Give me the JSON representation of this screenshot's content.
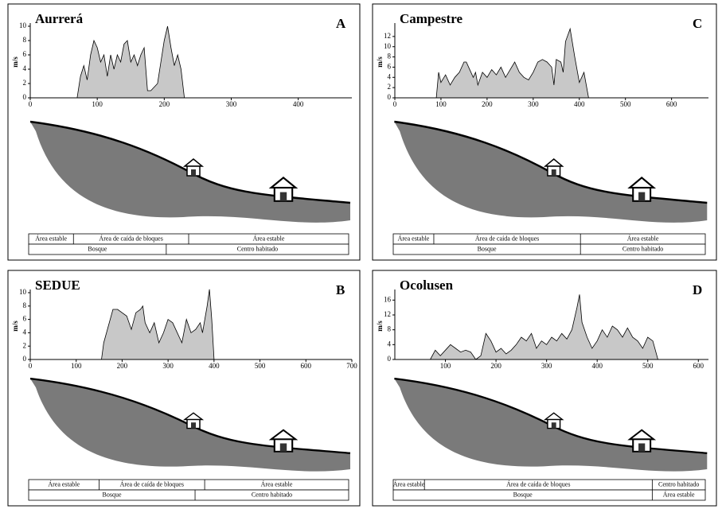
{
  "chart_data": [
    {
      "type": "area",
      "title": "Aurrerá",
      "annotation": "A",
      "ylabel": "m/s",
      "color": "#c8c8c8",
      "x": [
        70,
        75,
        80,
        85,
        90,
        95,
        100,
        105,
        110,
        115,
        120,
        125,
        130,
        135,
        140,
        145,
        150,
        155,
        160,
        165,
        170,
        175,
        180,
        185,
        190,
        195,
        200,
        205,
        210,
        215,
        220,
        225,
        230
      ],
      "values": [
        0,
        3,
        4.5,
        2.5,
        6,
        8,
        7,
        5,
        6,
        3,
        6,
        4,
        6,
        5,
        7.5,
        8,
        5,
        6,
        4.5,
        6,
        7,
        1,
        1,
        1.5,
        2,
        5,
        8,
        10,
        7,
        4.5,
        6,
        4,
        0
      ],
      "xlim": [
        0,
        480
      ],
      "xticks": [
        0,
        100,
        200,
        300,
        400
      ],
      "ylim": [
        0,
        10
      ],
      "yticks": [
        0,
        2,
        4,
        6,
        8,
        10
      ]
    },
    {
      "type": "area",
      "title": "Campestre",
      "annotation": "C",
      "ylabel": "m/s",
      "color": "#c8c8c8",
      "x": [
        90,
        95,
        100,
        110,
        120,
        130,
        140,
        150,
        155,
        160,
        170,
        175,
        180,
        190,
        200,
        210,
        220,
        230,
        240,
        250,
        260,
        270,
        280,
        290,
        300,
        310,
        320,
        330,
        340,
        345,
        350,
        360,
        365,
        370,
        380,
        390,
        400,
        410,
        420
      ],
      "values": [
        0,
        5,
        3,
        4.5,
        2.5,
        4,
        5,
        7,
        7,
        6,
        4,
        5,
        2.5,
        5,
        4,
        5.5,
        4.5,
        6,
        4,
        5.5,
        7,
        5,
        4,
        3.5,
        5,
        7,
        7.5,
        7,
        6,
        2.5,
        7.5,
        7,
        5,
        11,
        13.5,
        8,
        3,
        5,
        0
      ],
      "xlim": [
        0,
        680
      ],
      "xticks": [
        0,
        100,
        200,
        300,
        400,
        500,
        600
      ],
      "ylim": [
        0,
        14
      ],
      "yticks": [
        0,
        2,
        4,
        6,
        8,
        10,
        12
      ]
    },
    {
      "type": "area",
      "title": "SEDUE",
      "annotation": "B",
      "ylabel": "m/s",
      "color": "#c8c8c8",
      "x": [
        155,
        160,
        170,
        180,
        190,
        200,
        210,
        220,
        230,
        240,
        245,
        250,
        260,
        270,
        280,
        290,
        300,
        310,
        320,
        330,
        340,
        350,
        360,
        370,
        375,
        380,
        385,
        390,
        395,
        400
      ],
      "values": [
        0,
        2.5,
        5,
        7.5,
        7.5,
        7,
        6.5,
        4.5,
        7,
        7.5,
        8,
        5.5,
        4,
        5.5,
        2.5,
        4,
        6,
        5.5,
        4,
        2.5,
        6,
        4,
        4.5,
        5.5,
        4,
        6,
        8,
        10.5,
        6,
        0
      ],
      "xlim": [
        0,
        700
      ],
      "xticks": [
        0,
        100,
        200,
        300,
        400,
        500,
        600,
        700
      ],
      "ylim": [
        0,
        10
      ],
      "yticks": [
        0,
        2,
        4,
        6,
        8,
        10
      ]
    },
    {
      "type": "area",
      "title": "Ocolusen",
      "annotation": "D",
      "ylabel": "m/s",
      "color": "#c8c8c8",
      "x": [
        70,
        80,
        90,
        100,
        110,
        120,
        130,
        140,
        150,
        160,
        170,
        180,
        190,
        200,
        210,
        220,
        230,
        240,
        250,
        260,
        270,
        280,
        290,
        300,
        310,
        320,
        330,
        340,
        350,
        360,
        365,
        370,
        380,
        390,
        400,
        410,
        420,
        430,
        440,
        450,
        460,
        470,
        480,
        490,
        500,
        510,
        520
      ],
      "values": [
        0,
        2.5,
        1,
        2.5,
        4,
        3,
        2,
        2.5,
        2,
        0,
        1,
        7,
        5,
        2,
        3,
        1.5,
        2.5,
        4,
        6,
        5,
        7,
        3,
        5,
        4,
        6,
        5,
        7,
        5.5,
        8,
        14,
        17.5,
        10,
        6,
        3,
        5,
        8,
        6,
        9,
        8,
        6,
        8.5,
        6,
        5,
        3,
        6,
        5,
        0
      ],
      "xlim": [
        0,
        620
      ],
      "xticks": [
        100,
        200,
        300,
        400,
        500,
        600
      ],
      "ylim": [
        0,
        18
      ],
      "yticks": [
        0,
        4,
        8,
        12,
        16
      ]
    }
  ],
  "panels": [
    {
      "zones_top": [
        "Área estable",
        "Área de caída de bloques",
        "Área estable"
      ],
      "zones_bottom": [
        "Bosque",
        "Centro habitado"
      ]
    },
    {
      "zones_top": [
        "Área estable",
        "Área de caída de bloques",
        "Área estable"
      ],
      "zones_bottom": [
        "Bosque",
        "Centro habitado"
      ]
    },
    {
      "zones_top": [
        "Área estable",
        "Área de caída de bloques",
        "Área estable"
      ],
      "zones_bottom": [
        "Bosque",
        "Centro habitado"
      ]
    },
    {
      "zones_top": [
        "Área estable",
        "Área de caída de bloques",
        "Centro habitado"
      ],
      "zones_bottom": [
        "Bosque",
        "Área estable"
      ]
    }
  ]
}
